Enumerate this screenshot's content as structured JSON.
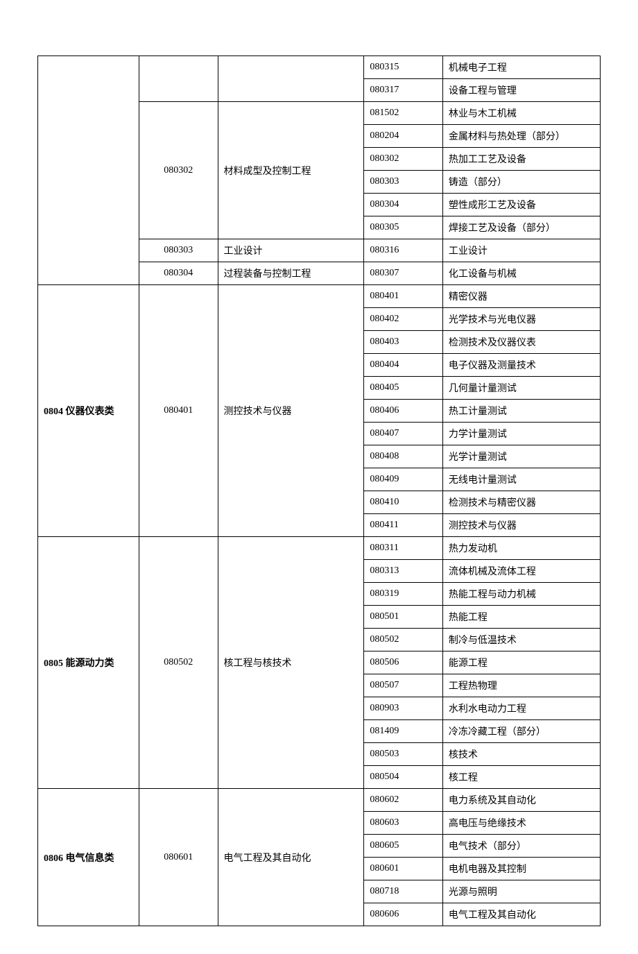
{
  "table": {
    "columns": [
      "category",
      "majorCode",
      "majorName",
      "subCode",
      "subName"
    ],
    "col_widths_pct": [
      18,
      14,
      26,
      14,
      28
    ],
    "border_color": "#000000",
    "background_color": "#ffffff",
    "text_color": "#000000",
    "font_family": "SimSun",
    "font_size_pt": 10.5,
    "sections": [
      {
        "category": "",
        "majors": [
          {
            "code": "",
            "name": "",
            "subs": [
              {
                "code": "080315",
                "name": "机械电子工程"
              },
              {
                "code": "080317",
                "name": "设备工程与管理"
              }
            ]
          },
          {
            "code": "080302",
            "name": "材料成型及控制工程",
            "subs": [
              {
                "code": "081502",
                "name": "林业与木工机械"
              },
              {
                "code": "080204",
                "name": "金属材料与热处理（部分）"
              },
              {
                "code": "080302",
                "name": "热加工工艺及设备"
              },
              {
                "code": "080303",
                "name": "铸造（部分）"
              },
              {
                "code": "080304",
                "name": "塑性成形工艺及设备"
              },
              {
                "code": "080305",
                "name": "焊接工艺及设备（部分）"
              }
            ]
          },
          {
            "code": "080303",
            "name": "工业设计",
            "subs": [
              {
                "code": "080316",
                "name": "工业设计"
              }
            ]
          },
          {
            "code": "080304",
            "name": "过程装备与控制工程",
            "subs": [
              {
                "code": "080307",
                "name": "化工设备与机械"
              }
            ]
          }
        ]
      },
      {
        "category": "0804 仪器仪表类",
        "majors": [
          {
            "code": "080401",
            "name": "测控技术与仪器",
            "subs": [
              {
                "code": "080401",
                "name": "精密仪器"
              },
              {
                "code": "080402",
                "name": "光学技术与光电仪器"
              },
              {
                "code": "080403",
                "name": "检测技术及仪器仪表"
              },
              {
                "code": "080404",
                "name": "电子仪器及测量技术"
              },
              {
                "code": "080405",
                "name": "几何量计量测试"
              },
              {
                "code": "080406",
                "name": "热工计量测试"
              },
              {
                "code": "080407",
                "name": "力学计量测试"
              },
              {
                "code": "080408",
                "name": "光学计量测试"
              },
              {
                "code": "080409",
                "name": "无线电计量测试"
              },
              {
                "code": "080410",
                "name": "检测技术与精密仪器"
              },
              {
                "code": "080411",
                "name": "测控技术与仪器"
              }
            ]
          }
        ]
      },
      {
        "category": "0805  能源动力类",
        "majors": [
          {
            "code": "080502",
            "name": "核工程与核技术",
            "subs": [
              {
                "code": "080311",
                "name": "热力发动机"
              },
              {
                "code": "080313",
                "name": "流体机械及流体工程"
              },
              {
                "code": "080319",
                "name": "热能工程与动力机械"
              },
              {
                "code": "080501",
                "name": "热能工程"
              },
              {
                "code": "080502",
                "name": "制冷与低温技术"
              },
              {
                "code": "080506",
                "name": "能源工程"
              },
              {
                "code": "080507",
                "name": "工程热物理"
              },
              {
                "code": "080903",
                "name": "水利水电动力工程"
              },
              {
                "code": "081409",
                "name": "冷冻冷藏工程（部分）"
              },
              {
                "code": "080503",
                "name": "核技术"
              },
              {
                "code": "080504",
                "name": "核工程"
              }
            ]
          }
        ]
      },
      {
        "category": "0806  电气信息类",
        "majors": [
          {
            "code": "080601",
            "name": "电气工程及其自动化",
            "subs": [
              {
                "code": "080602",
                "name": "电力系统及其自动化"
              },
              {
                "code": "080603",
                "name": "高电压与绝缘技术"
              },
              {
                "code": "080605",
                "name": "电气技术（部分）"
              },
              {
                "code": "080601",
                "name": "电机电器及其控制"
              },
              {
                "code": "080718",
                "name": "光源与照明"
              },
              {
                "code": "080606",
                "name": "电气工程及其自动化"
              }
            ]
          }
        ]
      }
    ]
  }
}
